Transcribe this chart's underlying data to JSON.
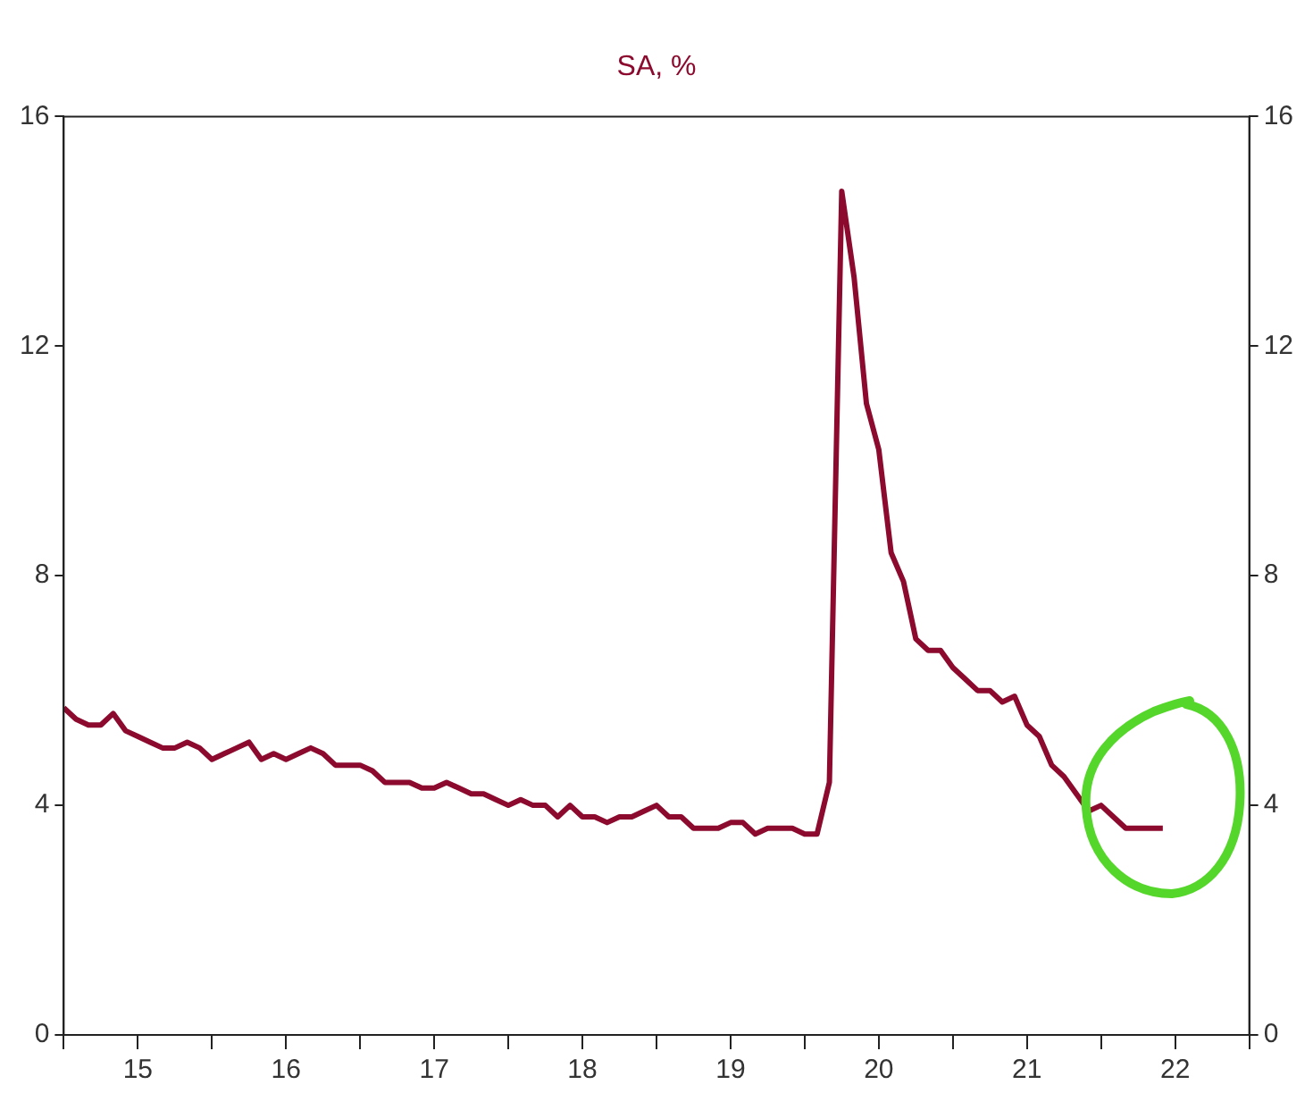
{
  "chart_data": {
    "type": "line",
    "title": "SA, %",
    "x": [
      "2015-01",
      "2015-02",
      "2015-03",
      "2015-04",
      "2015-05",
      "2015-06",
      "2015-07",
      "2015-08",
      "2015-09",
      "2015-10",
      "2015-11",
      "2015-12",
      "2016-01",
      "2016-02",
      "2016-03",
      "2016-04",
      "2016-05",
      "2016-06",
      "2016-07",
      "2016-08",
      "2016-09",
      "2016-10",
      "2016-11",
      "2016-12",
      "2017-01",
      "2017-02",
      "2017-03",
      "2017-04",
      "2017-05",
      "2017-06",
      "2017-07",
      "2017-08",
      "2017-09",
      "2017-10",
      "2017-11",
      "2017-12",
      "2018-01",
      "2018-02",
      "2018-03",
      "2018-04",
      "2018-05",
      "2018-06",
      "2018-07",
      "2018-08",
      "2018-09",
      "2018-10",
      "2018-11",
      "2018-12",
      "2019-01",
      "2019-02",
      "2019-03",
      "2019-04",
      "2019-05",
      "2019-06",
      "2019-07",
      "2019-08",
      "2019-09",
      "2019-10",
      "2019-11",
      "2019-12",
      "2020-01",
      "2020-02",
      "2020-03",
      "2020-04",
      "2020-05",
      "2020-06",
      "2020-07",
      "2020-08",
      "2020-09",
      "2020-10",
      "2020-11",
      "2020-12",
      "2021-01",
      "2021-02",
      "2021-03",
      "2021-04",
      "2021-05",
      "2021-06",
      "2021-07",
      "2021-08",
      "2021-09",
      "2021-10",
      "2021-11",
      "2021-12",
      "2022-01",
      "2022-02",
      "2022-03",
      "2022-04",
      "2022-05",
      "2022-06"
    ],
    "series": [
      {
        "color": "#8b0a2e",
        "values": [
          5.7,
          5.5,
          5.4,
          5.4,
          5.6,
          5.3,
          5.2,
          5.1,
          5.0,
          5.0,
          5.1,
          5.0,
          4.8,
          4.9,
          5.0,
          5.1,
          4.8,
          4.9,
          4.8,
          4.9,
          5.0,
          4.9,
          4.7,
          4.7,
          4.7,
          4.6,
          4.4,
          4.4,
          4.4,
          4.3,
          4.3,
          4.4,
          4.3,
          4.2,
          4.2,
          4.1,
          4.0,
          4.1,
          4.0,
          4.0,
          3.8,
          4.0,
          3.8,
          3.8,
          3.7,
          3.8,
          3.8,
          3.9,
          4.0,
          3.8,
          3.8,
          3.6,
          3.6,
          3.6,
          3.7,
          3.7,
          3.5,
          3.6,
          3.6,
          3.6,
          3.5,
          3.5,
          4.4,
          14.7,
          13.2,
          11.0,
          10.2,
          8.4,
          7.9,
          6.9,
          6.7,
          6.7,
          6.4,
          6.2,
          6.0,
          6.0,
          5.8,
          5.9,
          5.4,
          5.2,
          4.7,
          4.5,
          4.2,
          3.9,
          4.0,
          3.8,
          3.6,
          3.6,
          3.6,
          3.6
        ]
      }
    ],
    "xlim": [
      "2015-01",
      "2023-01"
    ],
    "xticks": [
      {
        "value": "2015-01",
        "label": null
      },
      {
        "value": "2015-07",
        "label": "15"
      },
      {
        "value": "2016-01",
        "label": null
      },
      {
        "value": "2016-07",
        "label": "16"
      },
      {
        "value": "2017-01",
        "label": null
      },
      {
        "value": "2017-07",
        "label": "17"
      },
      {
        "value": "2018-01",
        "label": null
      },
      {
        "value": "2018-07",
        "label": "18"
      },
      {
        "value": "2019-01",
        "label": null
      },
      {
        "value": "2019-07",
        "label": "19"
      },
      {
        "value": "2020-01",
        "label": null
      },
      {
        "value": "2020-07",
        "label": "20"
      },
      {
        "value": "2021-01",
        "label": null
      },
      {
        "value": "2021-07",
        "label": "21"
      },
      {
        "value": "2022-01",
        "label": null
      },
      {
        "value": "2022-07",
        "label": "22"
      },
      {
        "value": "2023-01",
        "label": null
      }
    ],
    "ylim": [
      0,
      16
    ],
    "yticks": [
      0,
      4,
      8,
      12,
      16
    ],
    "y2lim": [
      0,
      16
    ],
    "y2ticks": [
      0,
      4,
      8,
      12,
      16
    ],
    "grid": false,
    "legend": false,
    "marker": "none",
    "line_style": "solid"
  }
}
